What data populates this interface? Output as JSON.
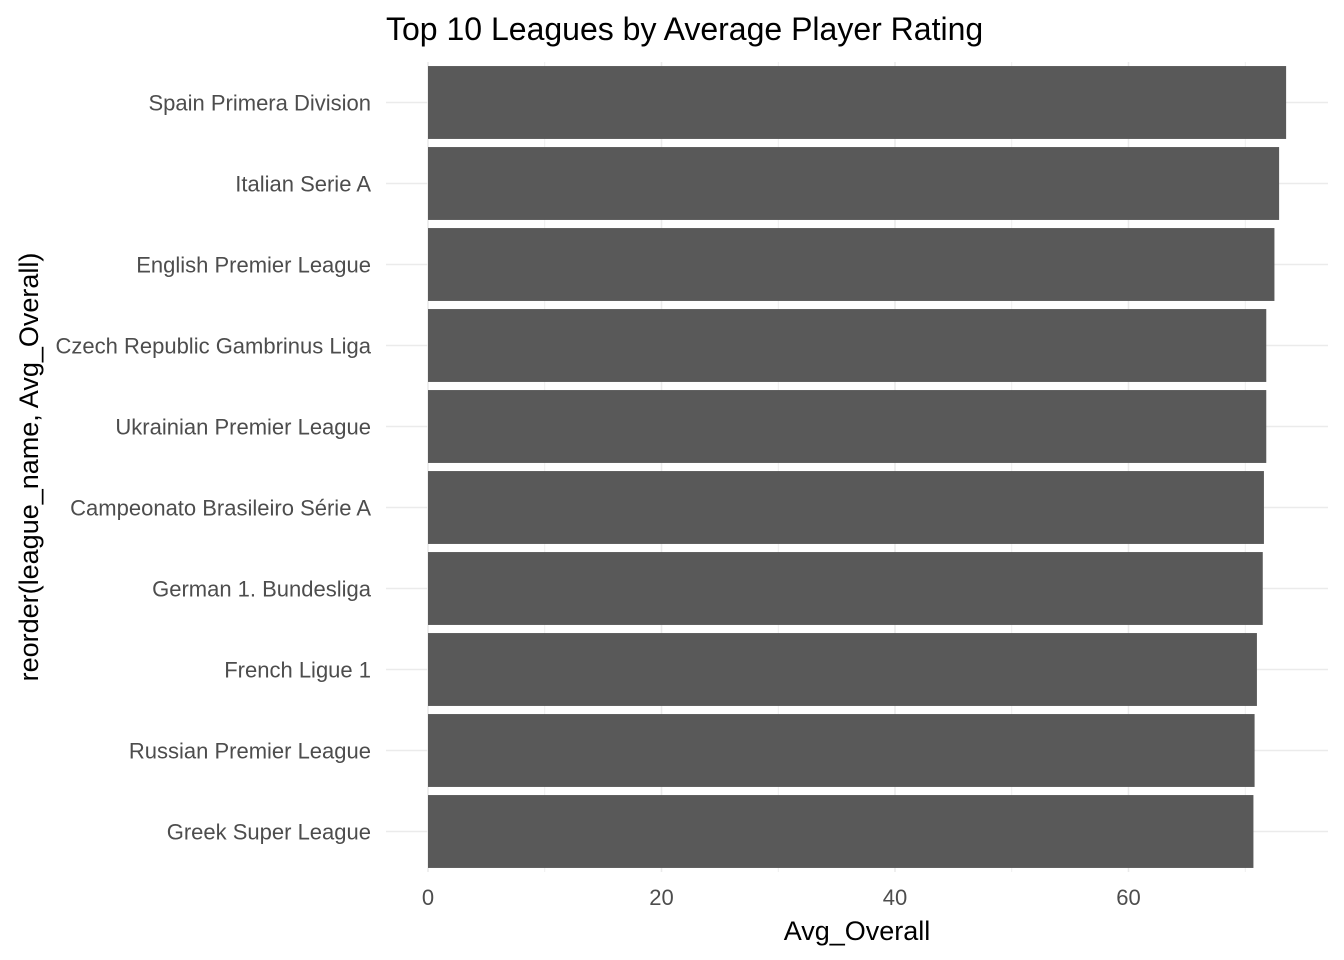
{
  "chart_data": {
    "type": "bar",
    "orientation": "horizontal",
    "title": "Top 10 Leagues by Average Player Rating",
    "xlabel": "Avg_Overall",
    "ylabel": "reorder(league_name, Avg_Overall)",
    "categories": [
      "Spain Primera Division",
      "Italian Serie A",
      "English Premier League",
      "Czech Republic Gambrinus Liga",
      "Ukrainian Premier League",
      "Campeonato Brasileiro Série A",
      "German 1. Bundesliga",
      "French Ligue 1",
      "Russian Premier League",
      "Greek Super League"
    ],
    "values": [
      73.5,
      72.9,
      72.5,
      71.8,
      71.8,
      71.6,
      71.5,
      71.0,
      70.8,
      70.7
    ],
    "xlim": [
      0,
      77.1
    ],
    "xticks": [
      "0",
      "20",
      "40",
      "60"
    ],
    "grid": true,
    "bar_color": "#595959",
    "grid_color": "#ebebeb"
  }
}
